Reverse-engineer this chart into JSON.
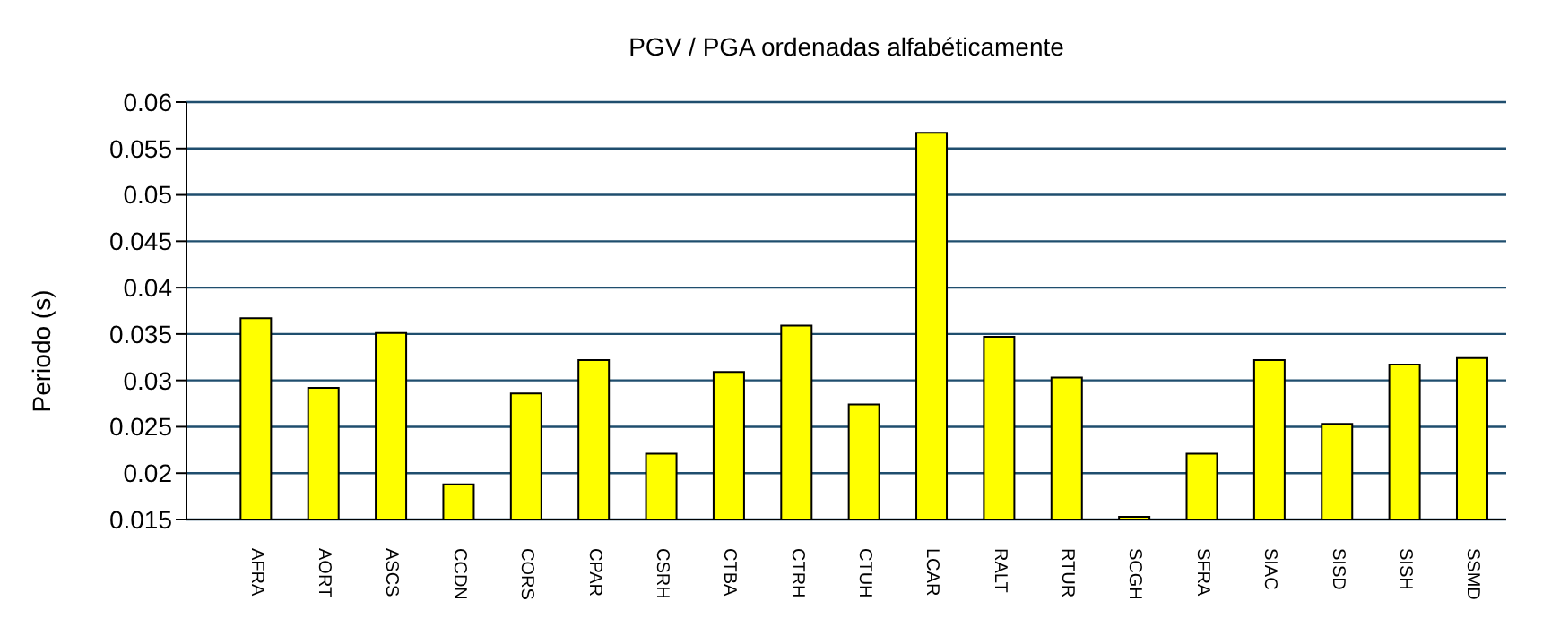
{
  "chart_data": {
    "type": "bar",
    "title": "PGV / PGA ordenadas alfabéticamente",
    "ylabel": "Periodo (s)",
    "categories": [
      "AFRA",
      "AORT",
      "ASCS",
      "CCDN",
      "CORS",
      "CPAR",
      "CSRH",
      "CTBA",
      "CTRH",
      "CTUH",
      "LCAR",
      "RALT",
      "RTUR",
      "SCGH",
      "SFRA",
      "SIAC",
      "SISD",
      "SISH",
      "SSMD"
    ],
    "values": [
      0.0367,
      0.0292,
      0.0351,
      0.0188,
      0.0286,
      0.0322,
      0.0221,
      0.0309,
      0.0359,
      0.0274,
      0.0567,
      0.0347,
      0.0303,
      0.0153,
      0.0221,
      0.0322,
      0.0253,
      0.0317,
      0.0324
    ],
    "color": "#ffff00",
    "ylim": [
      0.015,
      0.06
    ],
    "yticks": [
      0.015,
      0.02,
      0.025,
      0.03,
      0.035,
      0.04,
      0.045,
      0.05,
      0.055,
      0.06
    ],
    "grid": "y",
    "legend": false
  }
}
